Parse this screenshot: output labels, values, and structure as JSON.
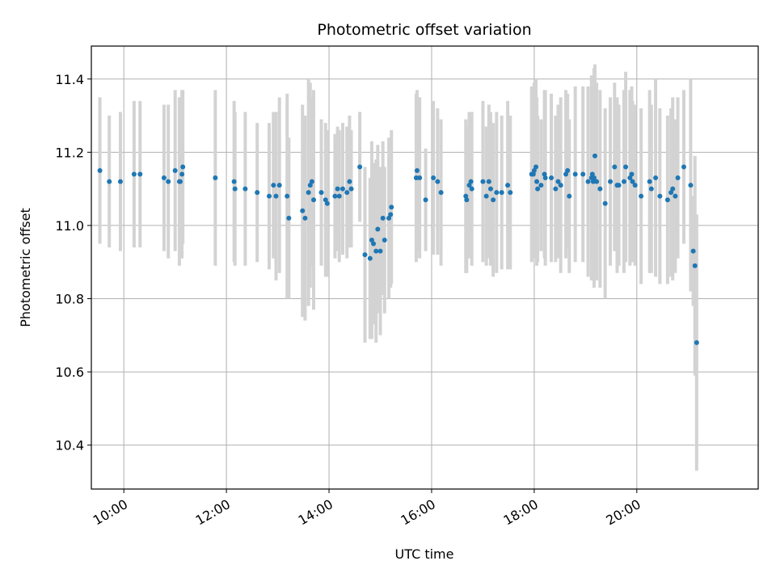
{
  "chart_data": {
    "type": "scatter",
    "title": "Photometric offset variation",
    "xlabel": "UTC time",
    "ylabel": "Photometric offset",
    "xlim": [
      "09:22",
      "22:22"
    ],
    "ylim": [
      10.28,
      11.49
    ],
    "x_ticks": [
      "10:00",
      "12:00",
      "14:00",
      "16:00",
      "18:00",
      "20:00"
    ],
    "y_ticks": [
      10.4,
      10.6,
      10.8,
      11.0,
      11.2,
      11.4
    ],
    "grid": true,
    "colors": {
      "point": "#1f77b4",
      "errorbar": "#d3d3d3",
      "grid": "#b0b0b0"
    },
    "series": [
      {
        "x": [
          "09:32",
          "09:43",
          "09:56",
          "10:12",
          "10:19",
          "10:47",
          "10:52",
          "11:00",
          "11:05",
          "11:06",
          "11:08",
          "11:09",
          "11:47",
          "12:09",
          "12:10",
          "12:22",
          "12:36",
          "12:50",
          "12:55",
          "12:58",
          "13:02",
          "13:11",
          "13:13",
          "13:29",
          "13:32",
          "13:36",
          "13:38",
          "13:40",
          "13:42",
          "13:51",
          "13:56",
          "13:58",
          "14:07",
          "14:10",
          "14:12",
          "14:16",
          "14:21",
          "14:24",
          "14:26",
          "14:36",
          "14:42",
          "14:48",
          "14:50",
          "14:52",
          "14:55",
          "14:57",
          "15:00",
          "15:03",
          "15:05",
          "15:10",
          "15:12",
          "15:13",
          "15:42",
          "15:43",
          "15:46",
          "15:53",
          "16:02",
          "16:07",
          "16:11",
          "16:40",
          "16:41",
          "16:44",
          "16:46",
          "16:47",
          "17:00",
          "17:04",
          "17:07",
          "17:09",
          "17:12",
          "17:16",
          "17:22",
          "17:29",
          "17:32",
          "17:57",
          "17:59",
          "18:00",
          "18:02",
          "18:03",
          "18:04",
          "18:08",
          "18:12",
          "18:13",
          "18:20",
          "18:25",
          "18:28",
          "18:31",
          "18:37",
          "18:39",
          "18:41",
          "18:48",
          "18:57",
          "19:03",
          "19:07",
          "19:08",
          "19:09",
          "19:10",
          "19:11",
          "19:13",
          "19:17",
          "19:23",
          "19:29",
          "19:34",
          "19:37",
          "19:39",
          "19:45",
          "19:47",
          "19:52",
          "19:54",
          "19:55",
          "19:58",
          "20:05",
          "20:15",
          "20:17",
          "20:22",
          "20:27",
          "20:36",
          "20:40",
          "20:42",
          "20:45",
          "20:48",
          "20:55",
          "21:03",
          "21:06",
          "21:08",
          "21:10"
        ],
        "y": [
          11.15,
          11.12,
          11.12,
          11.14,
          11.14,
          11.13,
          11.12,
          11.15,
          11.12,
          11.12,
          11.14,
          11.16,
          11.13,
          11.12,
          11.1,
          11.1,
          11.09,
          11.08,
          11.11,
          11.08,
          11.11,
          11.08,
          11.02,
          11.04,
          11.02,
          11.09,
          11.11,
          11.12,
          11.07,
          11.09,
          11.07,
          11.06,
          11.08,
          11.1,
          11.08,
          11.1,
          11.09,
          11.12,
          11.1,
          11.16,
          10.92,
          10.91,
          10.96,
          10.95,
          10.93,
          10.99,
          10.93,
          11.02,
          10.96,
          11.02,
          11.03,
          11.05,
          11.13,
          11.15,
          11.13,
          11.07,
          11.13,
          11.12,
          11.09,
          11.08,
          11.07,
          11.11,
          11.12,
          11.1,
          11.12,
          11.08,
          11.12,
          11.1,
          11.07,
          11.09,
          11.09,
          11.11,
          11.09,
          11.14,
          11.14,
          11.15,
          11.16,
          11.12,
          11.1,
          11.11,
          11.14,
          11.13,
          11.13,
          11.1,
          11.12,
          11.11,
          11.14,
          11.15,
          11.08,
          11.14,
          11.14,
          11.12,
          11.13,
          11.14,
          11.12,
          11.13,
          11.19,
          11.12,
          11.1,
          11.06,
          11.12,
          11.16,
          11.11,
          11.11,
          11.12,
          11.16,
          11.13,
          11.14,
          11.12,
          11.11,
          11.08,
          11.12,
          11.1,
          11.13,
          11.08,
          11.07,
          11.09,
          11.1,
          11.08,
          11.13,
          11.16,
          11.11,
          10.93,
          10.89,
          10.68
        ],
        "err": [
          0.2,
          0.18,
          0.19,
          0.2,
          0.2,
          0.2,
          0.21,
          0.22,
          0.23,
          0.2,
          0.23,
          0.21,
          0.24,
          0.22,
          0.21,
          0.21,
          0.19,
          0.2,
          0.2,
          0.23,
          0.24,
          0.28,
          0.22,
          0.29,
          0.28,
          0.31,
          0.28,
          0.23,
          0.3,
          0.2,
          0.21,
          0.2,
          0.17,
          0.17,
          0.18,
          0.18,
          0.18,
          0.18,
          0.16,
          0.15,
          0.24,
          0.22,
          0.27,
          0.22,
          0.25,
          0.23,
          0.23,
          0.21,
          0.2,
          0.22,
          0.2,
          0.21,
          0.23,
          0.22,
          0.22,
          0.14,
          0.21,
          0.2,
          0.2,
          0.21,
          0.2,
          0.2,
          0.19,
          0.21,
          0.22,
          0.19,
          0.21,
          0.21,
          0.21,
          0.22,
          0.21,
          0.23,
          0.21,
          0.24,
          0.23,
          0.24,
          0.24,
          0.23,
          0.2,
          0.18,
          0.23,
          0.24,
          0.23,
          0.2,
          0.21,
          0.24,
          0.23,
          0.21,
          0.21,
          0.24,
          0.24,
          0.26,
          0.28,
          0.24,
          0.25,
          0.3,
          0.25,
          0.27,
          0.27,
          0.26,
          0.23,
          0.23,
          0.24,
          0.22,
          0.25,
          0.26,
          0.24,
          0.24,
          0.22,
          0.22,
          0.24,
          0.25,
          0.23,
          0.27,
          0.24,
          0.23,
          0.23,
          0.25,
          0.21,
          0.22,
          0.21,
          0.29,
          0.15,
          0.3,
          0.35
        ]
      }
    ]
  }
}
